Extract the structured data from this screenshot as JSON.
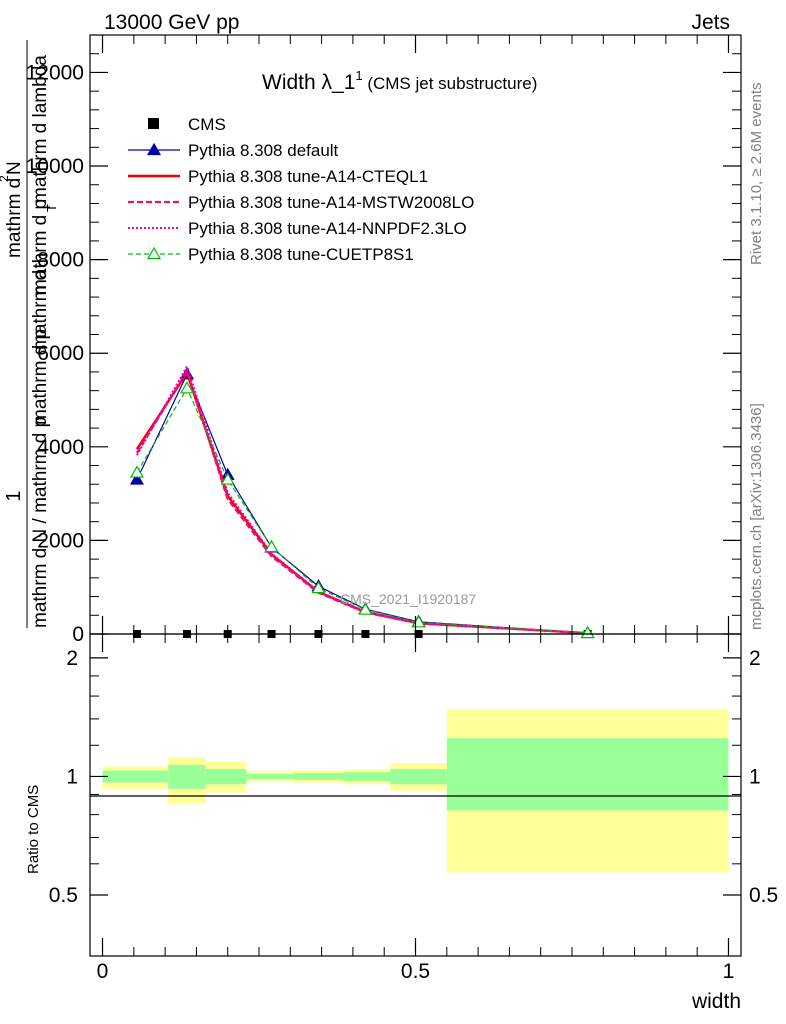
{
  "header": {
    "left": "13000 GeV pp",
    "right": "Jets"
  },
  "side_labels": {
    "rivet": "Rivet 3.1.10, ≥ 2.6M events",
    "mcplots": "mcplots.cern.ch [arXiv:1306.3436]"
  },
  "chart_data": {
    "type": "line",
    "title": "Width λ_1",
    "title_sup": "1",
    "title_suffix": " (CMS jet substructure)",
    "watermark": "CMS_2021_I1920187",
    "xlabel": "width",
    "ylabel_upper": {
      "numerator": "1",
      "denominator_line1": "mathrm d N / mathrm d p",
      "denominator_line2": "mathrm d p",
      "denominator_mid": "mathrm d",
      "numerator2": "mathrm d",
      "sup": "2",
      "n": "N",
      "den_full_a": "mathrm d p",
      "den_full_b": "T",
      "den_full_c": " mathrm d lambda",
      "num_full": "mathrm d",
      "num_full_n": "N"
    },
    "ylabel_lower": "Ratio to CMS",
    "xlim": [
      -0.02,
      1.02
    ],
    "ylim": [
      0,
      12800
    ],
    "ratio_ylim": [
      0.35,
      2.3
    ],
    "x_ticks": [
      {
        "v": 0,
        "label": "0"
      },
      {
        "v": 0.5,
        "label": "0.5"
      },
      {
        "v": 1,
        "label": "1"
      }
    ],
    "y_ticks": [
      {
        "v": 0,
        "label": "0"
      },
      {
        "v": 2000,
        "label": "2000"
      },
      {
        "v": 4000,
        "label": "4000"
      },
      {
        "v": 6000,
        "label": "6000"
      },
      {
        "v": 8000,
        "label": "8000"
      },
      {
        "v": 10000,
        "label": "10000"
      },
      {
        "v": 12000,
        "label": "12000"
      }
    ],
    "ratio_ticks": [
      {
        "v": 0.5,
        "label": "0.5"
      },
      {
        "v": 1,
        "label": "1"
      },
      {
        "v": 2,
        "label": "2"
      }
    ],
    "x": [
      0.055,
      0.135,
      0.2,
      0.27,
      0.345,
      0.42,
      0.505,
      0.775
    ],
    "series": [
      {
        "name": "CMS",
        "color": "#000000",
        "style": "data",
        "values": [
          0,
          0,
          0,
          0,
          0,
          0,
          0,
          0
        ]
      },
      {
        "name": "Pythia 8.308 default",
        "color": "#0000aa",
        "style": "solid-thin",
        "marker": "triangle",
        "values": [
          3300,
          5550,
          3400,
          1850,
          1020,
          530,
          260,
          20
        ]
      },
      {
        "name": "Pythia 8.308 tune-A14-CTEQL1",
        "color": "#ee0000",
        "style": "solid-thick",
        "values": [
          3950,
          5580,
          2950,
          1700,
          900,
          470,
          230,
          18
        ]
      },
      {
        "name": "Pythia 8.308 tune-A14-MSTW2008LO",
        "color": "#ee1166",
        "style": "dashed",
        "values": [
          3870,
          5620,
          2880,
          1660,
          880,
          460,
          225,
          18
        ]
      },
      {
        "name": "Pythia 8.308 tune-A14-NNPDF2.3LO",
        "color": "#ee00cc",
        "style": "dotted",
        "values": [
          3820,
          5720,
          3020,
          1720,
          910,
          470,
          232,
          18
        ]
      },
      {
        "name": "Pythia 8.308 tune-CUETP8S1",
        "color": "#00bb00",
        "style": "dashed-thin",
        "marker": "open-triangle",
        "values": [
          3450,
          5250,
          3300,
          1860,
          980,
          520,
          250,
          20
        ]
      }
    ],
    "ratio_bands": [
      {
        "x0": 0.0,
        "x1": 0.105,
        "y_lo": 0.93,
        "y_hi": 1.06,
        "g_lo": 0.965,
        "g_hi": 1.035
      },
      {
        "x0": 0.105,
        "x1": 0.165,
        "y_lo": 0.85,
        "y_hi": 1.12,
        "g_lo": 0.93,
        "g_hi": 1.07
      },
      {
        "x0": 0.165,
        "x1": 0.23,
        "y_lo": 0.91,
        "y_hi": 1.09,
        "g_lo": 0.955,
        "g_hi": 1.045
      },
      {
        "x0": 0.23,
        "x1": 0.305,
        "y_lo": 0.97,
        "y_hi": 1.03,
        "g_lo": 0.985,
        "g_hi": 1.015
      },
      {
        "x0": 0.305,
        "x1": 0.385,
        "y_lo": 0.965,
        "y_hi": 1.035,
        "g_lo": 0.98,
        "g_hi": 1.02
      },
      {
        "x0": 0.385,
        "x1": 0.46,
        "y_lo": 0.955,
        "y_hi": 1.04,
        "g_lo": 0.975,
        "g_hi": 1.025
      },
      {
        "x0": 0.46,
        "x1": 0.55,
        "y_lo": 0.92,
        "y_hi": 1.08,
        "g_lo": 0.955,
        "g_hi": 1.045
      },
      {
        "x0": 0.55,
        "x1": 1.0,
        "y_lo": 0.57,
        "y_hi": 1.48,
        "g_lo": 0.82,
        "g_hi": 1.25
      }
    ],
    "colors": {
      "band_outer": "#ffff99",
      "band_inner": "#99ff99",
      "watermark": "#999999",
      "side_text": "#808080"
    }
  }
}
